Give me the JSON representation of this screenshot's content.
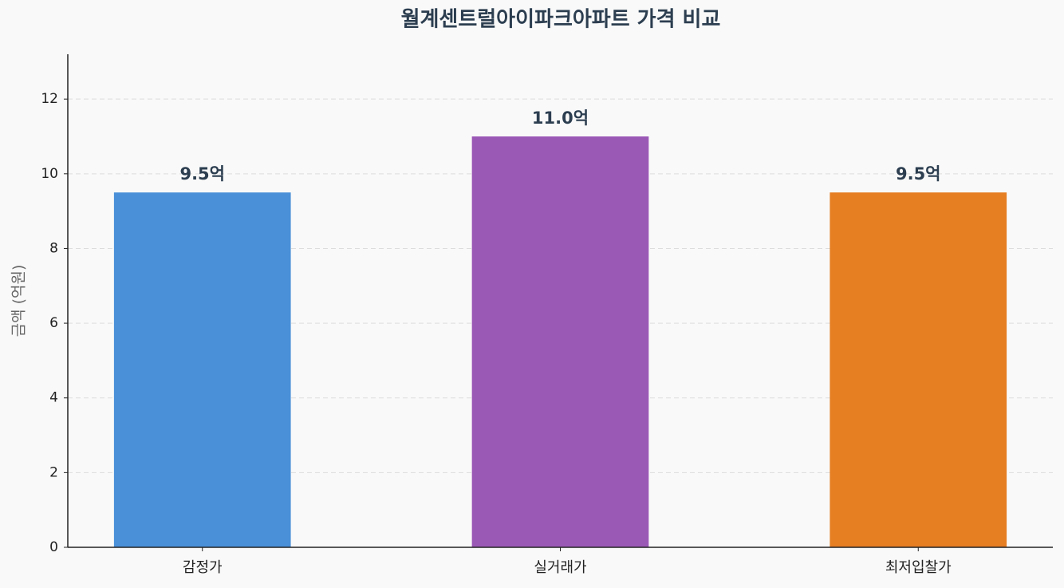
{
  "chart_data": {
    "type": "bar",
    "title": "월계센트럴아이파크아파트 가격 비교",
    "y_label": "금액 (억원)",
    "categories": [
      "감정가",
      "실거래가",
      "최저입찰가"
    ],
    "values": [
      9.5,
      11.0,
      9.5
    ],
    "value_labels": [
      "9.5억",
      "11.0억",
      "9.5억"
    ],
    "colors": [
      "#4a90d9",
      "#9b59b6",
      "#e67e22"
    ],
    "ylim": [
      0,
      13.2
    ],
    "yticks": [
      0,
      2,
      4,
      6,
      8,
      10,
      12
    ],
    "grid": true
  }
}
